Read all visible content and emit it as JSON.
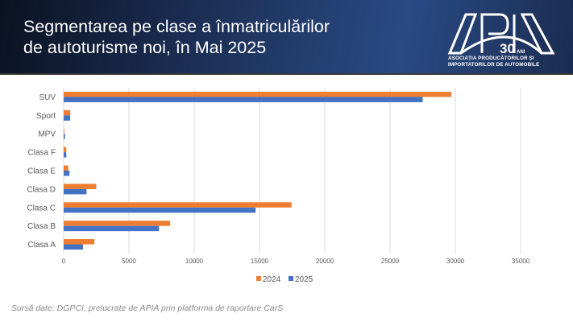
{
  "header": {
    "title_line1": "Segmentarea pe clase a înmatriculărilor",
    "title_line2": "de autoturisme noi, în Mai 2025",
    "logo": {
      "wordmark": "APIA",
      "badge": "30",
      "badge_sub": "ANI",
      "line1": "ASOCIAȚIA PRODUCĂTORILOR ȘI",
      "line2": "IMPORTATORILOR DE AUTOMOBILE"
    }
  },
  "footer": {
    "source": "Sursă date: DGPCI, prelucrate de APIA prin platforma de raportare CarS"
  },
  "colors": {
    "series_2024": "#ed7d31",
    "series_2025": "#4472c4",
    "grid": "#d9d9d9"
  },
  "chart_data": {
    "type": "bar",
    "orientation": "horizontal",
    "title": "Segmentarea pe clase a înmatriculărilor de autoturisme noi, în Mai 2025",
    "xlabel": "",
    "ylabel": "",
    "categories": [
      "SUV",
      "Sport",
      "MPV",
      "Clasa F",
      "Clasa E",
      "Clasa D",
      "Clasa C",
      "Clasa B",
      "Clasa A"
    ],
    "series": [
      {
        "name": "2024",
        "values": [
          29700,
          500,
          50,
          200,
          350,
          2500,
          17450,
          8150,
          2350
        ]
      },
      {
        "name": "2025",
        "values": [
          27500,
          500,
          100,
          200,
          450,
          1750,
          14700,
          7300,
          1480
        ]
      }
    ],
    "xlim": [
      0,
      35000
    ],
    "xticks": [
      "0",
      "5000",
      "10000",
      "15000",
      "20000",
      "25000",
      "30000",
      "35000"
    ],
    "grid": true,
    "legend": "bottom"
  }
}
